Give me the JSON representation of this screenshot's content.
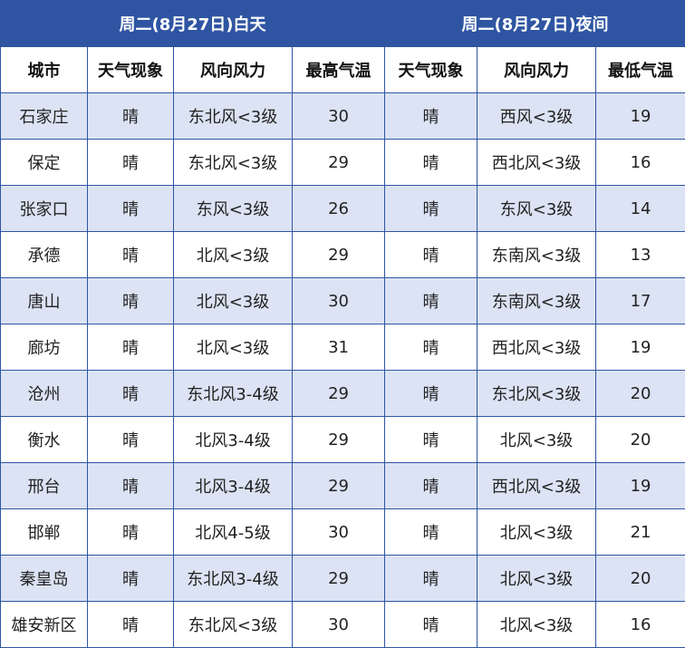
{
  "titles": {
    "day": "周二(8月27日)白天",
    "night": "周二(8月27日)夜间"
  },
  "headers": [
    "城市",
    "天气现象",
    "风向风力",
    "最高气温",
    "天气现象",
    "风向风力",
    "最低气温"
  ],
  "rows": [
    {
      "city": "石家庄",
      "day_weather": "晴",
      "day_wind": "东北风<3级",
      "high": "30",
      "night_weather": "晴",
      "night_wind": "西风<3级",
      "low": "19"
    },
    {
      "city": "保定",
      "day_weather": "晴",
      "day_wind": "东北风<3级",
      "high": "29",
      "night_weather": "晴",
      "night_wind": "西北风<3级",
      "low": "16"
    },
    {
      "city": "张家口",
      "day_weather": "晴",
      "day_wind": "东风<3级",
      "high": "26",
      "night_weather": "晴",
      "night_wind": "东风<3级",
      "low": "14"
    },
    {
      "city": "承德",
      "day_weather": "晴",
      "day_wind": "北风<3级",
      "high": "29",
      "night_weather": "晴",
      "night_wind": "东南风<3级",
      "low": "13"
    },
    {
      "city": "唐山",
      "day_weather": "晴",
      "day_wind": "北风<3级",
      "high": "30",
      "night_weather": "晴",
      "night_wind": "东南风<3级",
      "low": "17"
    },
    {
      "city": "廊坊",
      "day_weather": "晴",
      "day_wind": "北风<3级",
      "high": "31",
      "night_weather": "晴",
      "night_wind": "西北风<3级",
      "low": "19"
    },
    {
      "city": "沧州",
      "day_weather": "晴",
      "day_wind": "东北风3-4级",
      "high": "29",
      "night_weather": "晴",
      "night_wind": "东北风<3级",
      "low": "20"
    },
    {
      "city": "衡水",
      "day_weather": "晴",
      "day_wind": "北风3-4级",
      "high": "29",
      "night_weather": "晴",
      "night_wind": "北风<3级",
      "low": "20"
    },
    {
      "city": "邢台",
      "day_weather": "晴",
      "day_wind": "北风3-4级",
      "high": "29",
      "night_weather": "晴",
      "night_wind": "西北风<3级",
      "low": "19"
    },
    {
      "city": "邯郸",
      "day_weather": "晴",
      "day_wind": "北风4-5级",
      "high": "30",
      "night_weather": "晴",
      "night_wind": "北风<3级",
      "low": "21"
    },
    {
      "city": "秦皇岛",
      "day_weather": "晴",
      "day_wind": "东北风3-4级",
      "high": "29",
      "night_weather": "晴",
      "night_wind": "北风<3级",
      "low": "20"
    },
    {
      "city": "雄安新区",
      "day_weather": "晴",
      "day_wind": "东北风<3级",
      "high": "30",
      "night_weather": "晴",
      "night_wind": "北风<3级",
      "low": "16"
    }
  ],
  "colors": {
    "header_blue": "#2f55a2",
    "stripe": "#dbe3f4",
    "border": "#2f55a2"
  }
}
